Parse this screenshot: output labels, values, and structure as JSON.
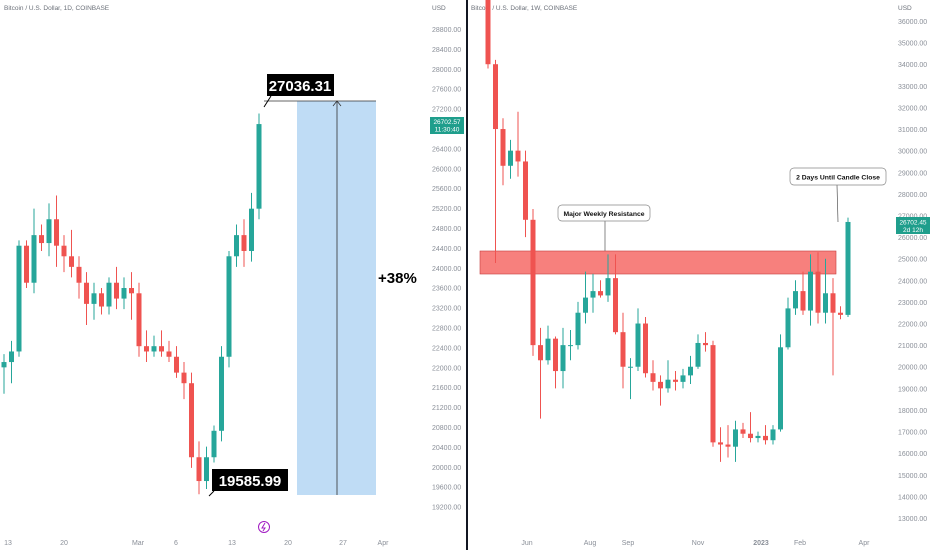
{
  "colors": {
    "up": "#26a69a",
    "down": "#ef5350",
    "range_fill": "#bfdcf5",
    "resistance_fill": "#f7807d",
    "badge_bg": "#000000",
    "price_tag": "#1f9e8c",
    "divider": "#131722"
  },
  "left": {
    "header": "Bitcoin / U.S. Dollar, 1D, COINBASE",
    "currency": "USD",
    "y_ticks": [
      "28800.00",
      "28400.00",
      "28000.00",
      "27600.00",
      "27200.00",
      "26800.00",
      "26400.00",
      "26000.00",
      "25600.00",
      "25200.00",
      "24800.00",
      "24400.00",
      "24000.00",
      "23600.00",
      "23200.00",
      "22800.00",
      "22400.00",
      "22000.00",
      "21600.00",
      "21200.00",
      "20800.00",
      "20400.00",
      "20000.00",
      "19600.00",
      "19200.00"
    ],
    "x_ticks": [
      "13",
      "20",
      "Mar",
      "6",
      "13",
      "20",
      "27",
      "Apr"
    ],
    "high_label": "27036.31",
    "low_label": "19585.99",
    "pct_label": "+38%",
    "price_tag": {
      "price": "26702.57",
      "countdown": "11:30:40"
    }
  },
  "right": {
    "header": "Bitcoin / U.S. Dollar, 1W, COINBASE",
    "currency": "USD",
    "y_ticks": [
      "36000.00",
      "35000.00",
      "34000.00",
      "33000.00",
      "32000.00",
      "31000.00",
      "30000.00",
      "29000.00",
      "28000.00",
      "27000.00",
      "26000.00",
      "25000.00",
      "24000.00",
      "23000.00",
      "22000.00",
      "21000.00",
      "20000.00",
      "19000.00",
      "18000.00",
      "17000.00",
      "16000.00",
      "15000.00",
      "14000.00",
      "13000.00"
    ],
    "x_ticks": [
      "Jun",
      "Aug",
      "Sep",
      "Nov",
      "2023",
      "Feb",
      "Apr"
    ],
    "resistance_label": "Major Weekly Resistance",
    "candle_close_label": "2 Days Until Candle Close",
    "price_tag": {
      "price": "26702.45",
      "countdown": "2d 12h"
    }
  },
  "chart_data": [
    {
      "type": "candlestick",
      "title": "Bitcoin / U.S. Dollar, 1D, COINBASE",
      "ylabel": "USD",
      "ylim": [
        19000,
        29000
      ],
      "x_tick_labels": [
        "13",
        "20",
        "Mar",
        "6",
        "13",
        "20",
        "27",
        "Apr"
      ],
      "annotations": [
        "27036.31",
        "19585.99",
        "+38%"
      ],
      "candles": [
        {
          "o": 22000,
          "h": 22250,
          "l": 21500,
          "c": 22100
        },
        {
          "o": 22100,
          "h": 22500,
          "l": 21700,
          "c": 22300
        },
        {
          "o": 22300,
          "h": 24400,
          "l": 22200,
          "c": 24300
        },
        {
          "o": 24300,
          "h": 24400,
          "l": 23500,
          "c": 23600
        },
        {
          "o": 23600,
          "h": 25000,
          "l": 23400,
          "c": 24500
        },
        {
          "o": 24500,
          "h": 24700,
          "l": 24200,
          "c": 24350
        },
        {
          "o": 24350,
          "h": 25100,
          "l": 24100,
          "c": 24800
        },
        {
          "o": 24800,
          "h": 25250,
          "l": 23900,
          "c": 24300
        },
        {
          "o": 24300,
          "h": 24500,
          "l": 23800,
          "c": 24100
        },
        {
          "o": 24100,
          "h": 24600,
          "l": 23700,
          "c": 23900
        },
        {
          "o": 23900,
          "h": 24100,
          "l": 23300,
          "c": 23600
        },
        {
          "o": 23600,
          "h": 23800,
          "l": 22800,
          "c": 23200
        },
        {
          "o": 23200,
          "h": 23600,
          "l": 22900,
          "c": 23400
        },
        {
          "o": 23400,
          "h": 23500,
          "l": 23000,
          "c": 23150
        },
        {
          "o": 23150,
          "h": 23700,
          "l": 23000,
          "c": 23600
        },
        {
          "o": 23600,
          "h": 23900,
          "l": 23100,
          "c": 23300
        },
        {
          "o": 23300,
          "h": 23700,
          "l": 23100,
          "c": 23500
        },
        {
          "o": 23500,
          "h": 23800,
          "l": 22900,
          "c": 23400
        },
        {
          "o": 23400,
          "h": 23600,
          "l": 22200,
          "c": 22400
        },
        {
          "o": 22400,
          "h": 22700,
          "l": 22100,
          "c": 22300
        },
        {
          "o": 22300,
          "h": 22600,
          "l": 22200,
          "c": 22400
        },
        {
          "o": 22400,
          "h": 22700,
          "l": 22200,
          "c": 22300
        },
        {
          "o": 22300,
          "h": 22500,
          "l": 22100,
          "c": 22200
        },
        {
          "o": 22200,
          "h": 22400,
          "l": 21800,
          "c": 21900
        },
        {
          "o": 21900,
          "h": 22100,
          "l": 21400,
          "c": 21700
        },
        {
          "o": 21700,
          "h": 21900,
          "l": 20100,
          "c": 20300
        },
        {
          "o": 20300,
          "h": 20600,
          "l": 19600,
          "c": 19850
        },
        {
          "o": 19850,
          "h": 20500,
          "l": 19700,
          "c": 20300
        },
        {
          "o": 20300,
          "h": 20900,
          "l": 20200,
          "c": 20800
        },
        {
          "o": 20800,
          "h": 22400,
          "l": 20600,
          "c": 22200
        },
        {
          "o": 22200,
          "h": 24200,
          "l": 22000,
          "c": 24100
        },
        {
          "o": 24100,
          "h": 24700,
          "l": 23900,
          "c": 24500
        },
        {
          "o": 24500,
          "h": 24800,
          "l": 23900,
          "c": 24200
        },
        {
          "o": 24200,
          "h": 25300,
          "l": 24000,
          "c": 25000
        },
        {
          "o": 25000,
          "h": 26800,
          "l": 24800,
          "c": 26600
        }
      ]
    },
    {
      "type": "candlestick",
      "title": "Bitcoin / U.S. Dollar, 1W, COINBASE",
      "ylabel": "USD",
      "ylim": [
        13000,
        37000
      ],
      "x_tick_labels": [
        "Jun",
        "Aug",
        "Sep",
        "Nov",
        "2023",
        "Feb",
        "Apr"
      ],
      "annotations": [
        "Major Weekly Resistance",
        "2 Days Until Candle Close"
      ],
      "resistance_zone": [
        24200,
        25200
      ],
      "candles": [
        {
          "o": 37000,
          "h": 37300,
          "l": 33800,
          "c": 34000
        },
        {
          "o": 34000,
          "h": 34200,
          "l": 24800,
          "c": 31000
        },
        {
          "o": 31000,
          "h": 31500,
          "l": 28400,
          "c": 29300
        },
        {
          "o": 29300,
          "h": 30500,
          "l": 28700,
          "c": 30000
        },
        {
          "o": 30000,
          "h": 31800,
          "l": 28800,
          "c": 29500
        },
        {
          "o": 29500,
          "h": 30000,
          "l": 26000,
          "c": 26800
        },
        {
          "o": 26800,
          "h": 27300,
          "l": 20500,
          "c": 21000
        },
        {
          "o": 21000,
          "h": 21800,
          "l": 17600,
          "c": 20300
        },
        {
          "o": 20300,
          "h": 21900,
          "l": 20100,
          "c": 21300
        },
        {
          "o": 21300,
          "h": 21400,
          "l": 19000,
          "c": 19800
        },
        {
          "o": 19800,
          "h": 21800,
          "l": 19000,
          "c": 21000
        },
        {
          "o": 21000,
          "h": 21700,
          "l": 20300,
          "c": 21000
        },
        {
          "o": 21000,
          "h": 23000,
          "l": 20800,
          "c": 22500
        },
        {
          "o": 22500,
          "h": 24400,
          "l": 22000,
          "c": 23200
        },
        {
          "o": 23200,
          "h": 24300,
          "l": 22500,
          "c": 23500
        },
        {
          "o": 23500,
          "h": 24000,
          "l": 23200,
          "c": 23300
        },
        {
          "o": 23300,
          "h": 25200,
          "l": 23000,
          "c": 24100
        },
        {
          "o": 24100,
          "h": 25200,
          "l": 21500,
          "c": 21600
        },
        {
          "o": 21600,
          "h": 22500,
          "l": 19000,
          "c": 20000
        },
        {
          "o": 20000,
          "h": 20400,
          "l": 18500,
          "c": 20000
        },
        {
          "o": 20000,
          "h": 22700,
          "l": 19800,
          "c": 22000
        },
        {
          "o": 22000,
          "h": 22300,
          "l": 19500,
          "c": 19700
        },
        {
          "o": 19700,
          "h": 20300,
          "l": 18900,
          "c": 19300
        },
        {
          "o": 19300,
          "h": 19600,
          "l": 18200,
          "c": 19000
        },
        {
          "o": 19000,
          "h": 20300,
          "l": 18800,
          "c": 19400
        },
        {
          "o": 19400,
          "h": 19800,
          "l": 18900,
          "c": 19300
        },
        {
          "o": 19300,
          "h": 19900,
          "l": 19000,
          "c": 19600
        },
        {
          "o": 19600,
          "h": 20500,
          "l": 19200,
          "c": 20000
        },
        {
          "o": 20000,
          "h": 21500,
          "l": 19900,
          "c": 21100
        },
        {
          "o": 21100,
          "h": 21600,
          "l": 20700,
          "c": 21000
        },
        {
          "o": 21000,
          "h": 21200,
          "l": 16300,
          "c": 16500
        },
        {
          "o": 16500,
          "h": 17200,
          "l": 15600,
          "c": 16400
        },
        {
          "o": 16400,
          "h": 17300,
          "l": 15800,
          "c": 16300
        },
        {
          "o": 16300,
          "h": 17500,
          "l": 15600,
          "c": 17100
        },
        {
          "o": 17100,
          "h": 17400,
          "l": 16700,
          "c": 16900
        },
        {
          "o": 16900,
          "h": 17900,
          "l": 16500,
          "c": 16700
        },
        {
          "o": 16700,
          "h": 17000,
          "l": 16500,
          "c": 16800
        },
        {
          "o": 16800,
          "h": 17300,
          "l": 16400,
          "c": 16600
        },
        {
          "o": 16600,
          "h": 17300,
          "l": 16400,
          "c": 17100
        },
        {
          "o": 17100,
          "h": 21500,
          "l": 17000,
          "c": 20900
        },
        {
          "o": 20900,
          "h": 23200,
          "l": 20800,
          "c": 22700
        },
        {
          "o": 22700,
          "h": 24000,
          "l": 22400,
          "c": 23500
        },
        {
          "o": 23500,
          "h": 24400,
          "l": 22400,
          "c": 22600
        },
        {
          "o": 22600,
          "h": 25200,
          "l": 21900,
          "c": 24400
        },
        {
          "o": 24400,
          "h": 25300,
          "l": 22000,
          "c": 22500
        },
        {
          "o": 22500,
          "h": 25000,
          "l": 22000,
          "c": 23400
        },
        {
          "o": 23400,
          "h": 24100,
          "l": 19600,
          "c": 22500
        },
        {
          "o": 22500,
          "h": 22800,
          "l": 22200,
          "c": 22400
        },
        {
          "o": 22400,
          "h": 26900,
          "l": 22300,
          "c": 26700
        }
      ]
    }
  ]
}
